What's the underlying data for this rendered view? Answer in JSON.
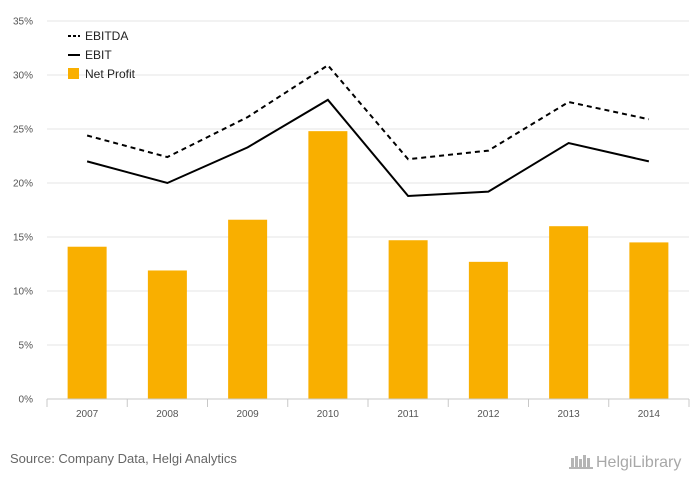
{
  "chart_data": {
    "type": "bar",
    "categories": [
      "2007",
      "2008",
      "2009",
      "2010",
      "2011",
      "2012",
      "2013",
      "2014"
    ],
    "series": [
      {
        "name": "EBITDA",
        "kind": "line",
        "style": "dashed",
        "color": "#000000",
        "values": [
          24.4,
          22.4,
          26.1,
          30.9,
          22.2,
          23.0,
          27.5,
          25.9
        ]
      },
      {
        "name": "EBIT",
        "kind": "line",
        "style": "solid",
        "color": "#000000",
        "values": [
          22.0,
          20.0,
          23.3,
          27.7,
          18.8,
          19.2,
          23.7,
          22.0
        ]
      },
      {
        "name": "Net Profit",
        "kind": "bar",
        "color": "#F9AF00",
        "values": [
          14.1,
          11.9,
          16.6,
          24.8,
          14.7,
          12.7,
          16.0,
          14.5
        ]
      }
    ],
    "yTicks": [
      "0%",
      "5%",
      "10%",
      "15%",
      "20%",
      "25%",
      "30%",
      "35%"
    ],
    "ylim": [
      0,
      35
    ],
    "grid": true,
    "legend": "top-left",
    "source": "Source: Company Data, Helgi Analytics",
    "logo": "HelgiLibrary"
  }
}
